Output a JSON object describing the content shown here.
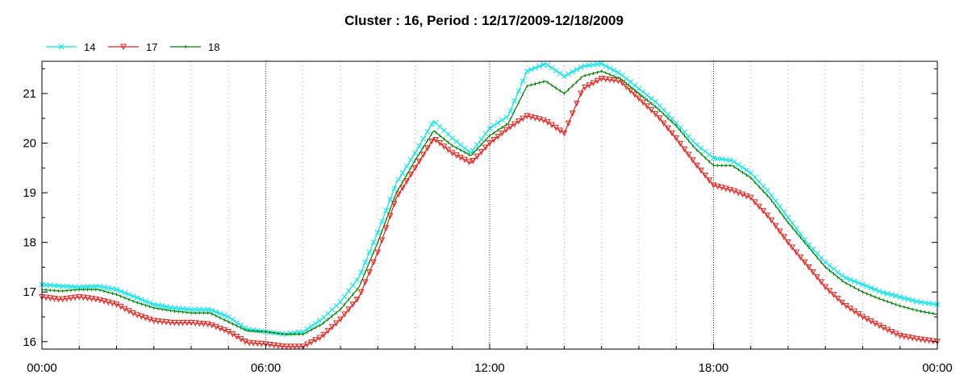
{
  "chart_data": {
    "type": "line",
    "title": "Cluster : 16, Period : 12/17/2009-12/18/2009",
    "xlabel": "",
    "ylabel": "",
    "x_ticks": [
      "00:00",
      "06:00",
      "12:00",
      "18:00",
      "00:00"
    ],
    "x_tick_hours": [
      0,
      6,
      12,
      18,
      24
    ],
    "x_range_hours": [
      0,
      24
    ],
    "ylim": [
      15.85,
      21.65
    ],
    "y_ticks": [
      16,
      17,
      18,
      19,
      20,
      21
    ],
    "grid": true,
    "legend_position": "top-left",
    "x_hours": [
      0,
      0.5,
      1,
      1.5,
      2,
      2.5,
      3,
      3.5,
      4,
      4.5,
      5,
      5.5,
      6,
      6.5,
      7,
      7.5,
      8,
      8.5,
      9,
      9.5,
      10,
      10.5,
      11,
      11.5,
      12,
      12.5,
      13,
      13.5,
      14,
      14.5,
      15,
      15.5,
      16,
      16.5,
      17,
      17.5,
      18,
      18.5,
      19,
      19.5,
      20,
      20.5,
      21,
      21.5,
      22,
      22.5,
      23,
      23.5,
      24
    ],
    "series": [
      {
        "name": "14",
        "color": "#00e5ee",
        "marker": "x",
        "values": [
          17.15,
          17.12,
          17.1,
          17.12,
          17.05,
          16.9,
          16.75,
          16.68,
          16.65,
          16.65,
          16.5,
          16.25,
          16.2,
          16.15,
          16.2,
          16.45,
          16.8,
          17.3,
          18.2,
          19.2,
          19.8,
          20.45,
          20.1,
          19.8,
          20.3,
          20.55,
          21.45,
          21.6,
          21.35,
          21.55,
          21.6,
          21.4,
          21.1,
          20.8,
          20.4,
          20.0,
          19.7,
          19.65,
          19.4,
          19.0,
          18.5,
          18.0,
          17.6,
          17.3,
          17.15,
          17.0,
          16.9,
          16.8,
          16.75
        ]
      },
      {
        "name": "17",
        "color": "#e8201c",
        "marker": "triangle-down",
        "values": [
          16.9,
          16.85,
          16.9,
          16.85,
          16.75,
          16.55,
          16.42,
          16.38,
          16.38,
          16.35,
          16.2,
          15.98,
          15.95,
          15.9,
          15.9,
          16.1,
          16.45,
          16.9,
          17.8,
          18.9,
          19.5,
          20.1,
          19.8,
          19.6,
          20.0,
          20.3,
          20.55,
          20.45,
          20.2,
          21.1,
          21.3,
          21.25,
          20.9,
          20.55,
          20.1,
          19.6,
          19.15,
          19.05,
          18.9,
          18.5,
          18.0,
          17.55,
          17.1,
          16.75,
          16.5,
          16.3,
          16.12,
          16.05,
          16.0
        ]
      },
      {
        "name": "18",
        "color": "#008000",
        "marker": "line",
        "values": [
          17.05,
          17.02,
          17.05,
          17.05,
          16.95,
          16.8,
          16.68,
          16.62,
          16.58,
          16.58,
          16.4,
          16.22,
          16.2,
          16.15,
          16.15,
          16.35,
          16.65,
          17.1,
          18.0,
          19.0,
          19.65,
          20.25,
          19.95,
          19.75,
          20.15,
          20.4,
          21.15,
          21.25,
          21.0,
          21.35,
          21.45,
          21.3,
          21.0,
          20.7,
          20.35,
          19.9,
          19.55,
          19.55,
          19.3,
          18.9,
          18.4,
          17.95,
          17.5,
          17.2,
          17.0,
          16.85,
          16.72,
          16.62,
          16.55
        ]
      }
    ]
  }
}
